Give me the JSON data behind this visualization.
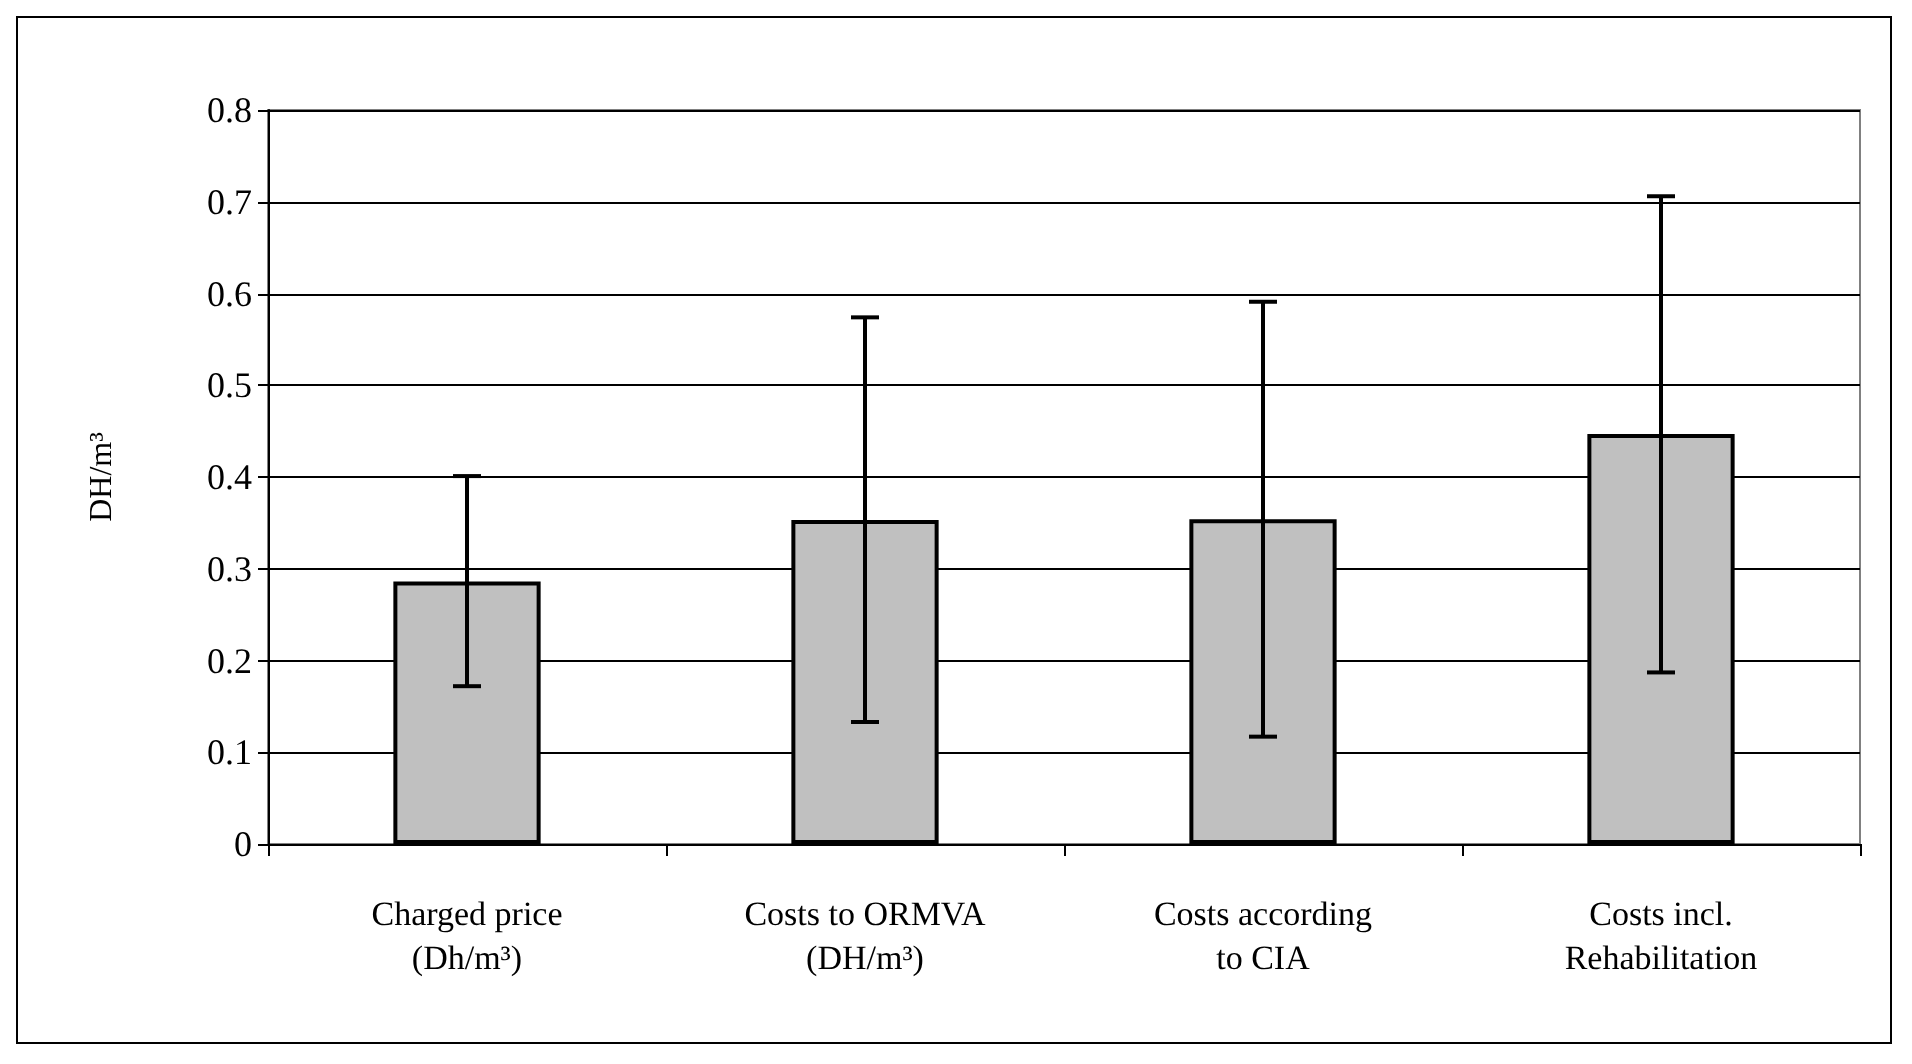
{
  "chart_data": {
    "type": "bar",
    "ylabel": "DH/m³",
    "categories": [
      "Charged price\n(Dh/m³)",
      "Costs to ORMVA\n(DH/m³)",
      "Costs according\nto CIA",
      "Costs incl.\nRehabilitation"
    ],
    "values": [
      0.286,
      0.353,
      0.354,
      0.447
    ],
    "color": "#c0c0c0",
    "errors": [
      [
        0.172,
        0.401
      ],
      [
        0.133,
        0.574
      ],
      [
        0.117,
        0.591
      ],
      [
        0.187,
        0.706
      ]
    ],
    "ylim": [
      0,
      0.8
    ],
    "yticks": [
      0,
      0.1,
      0.2,
      0.3,
      0.4,
      0.5,
      0.6,
      0.7,
      0.8
    ],
    "grid": "y"
  }
}
